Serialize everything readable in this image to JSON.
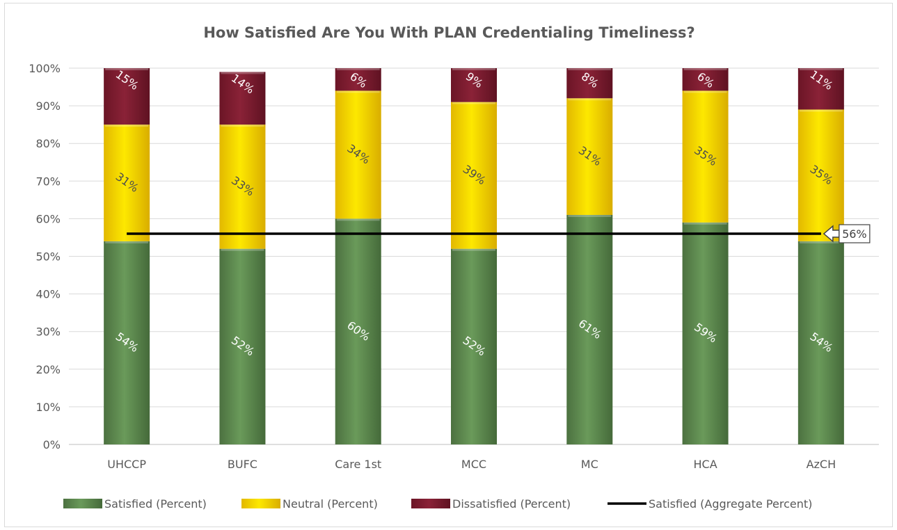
{
  "chart_data": {
    "type": "bar",
    "stacked": true,
    "title": "How Satisfied Are You With PLAN Credentialing Timeliness?",
    "categories": [
      "UHCCP",
      "BUFC",
      "Care 1st",
      "MCC",
      "MC",
      "HCA",
      "AzCH"
    ],
    "series": [
      {
        "name": "Satisfied (Percent)",
        "values": [
          54,
          52,
          60,
          52,
          61,
          59,
          54
        ],
        "labels": [
          "54%",
          "52%",
          "60%",
          "52%",
          "61%",
          "59%",
          "54%"
        ],
        "color": "#5e8a4f"
      },
      {
        "name": "Neutral (Percent)",
        "values": [
          31,
          33,
          34,
          39,
          31,
          35,
          35
        ],
        "labels": [
          "31%",
          "33%",
          "34%",
          "39%",
          "31%",
          "35%",
          "35%"
        ],
        "color": "#f2cf00"
      },
      {
        "name": "Dissatisfied (Percent)",
        "values": [
          15,
          14,
          6,
          9,
          8,
          6,
          11
        ],
        "labels": [
          "15%",
          "14%",
          "6%",
          "9%",
          "8%",
          "6%",
          "11%"
        ],
        "color": "#7b1a2e"
      }
    ],
    "aggregate_line": {
      "name": "Satisfied (Aggregate Percent)",
      "value": 56,
      "label": "56%",
      "color": "#000000"
    },
    "y_ticks": [
      "0%",
      "10%",
      "20%",
      "30%",
      "40%",
      "50%",
      "60%",
      "70%",
      "80%",
      "90%",
      "100%"
    ],
    "ylim": [
      0,
      100
    ],
    "grid": true,
    "legend_position": "bottom"
  }
}
